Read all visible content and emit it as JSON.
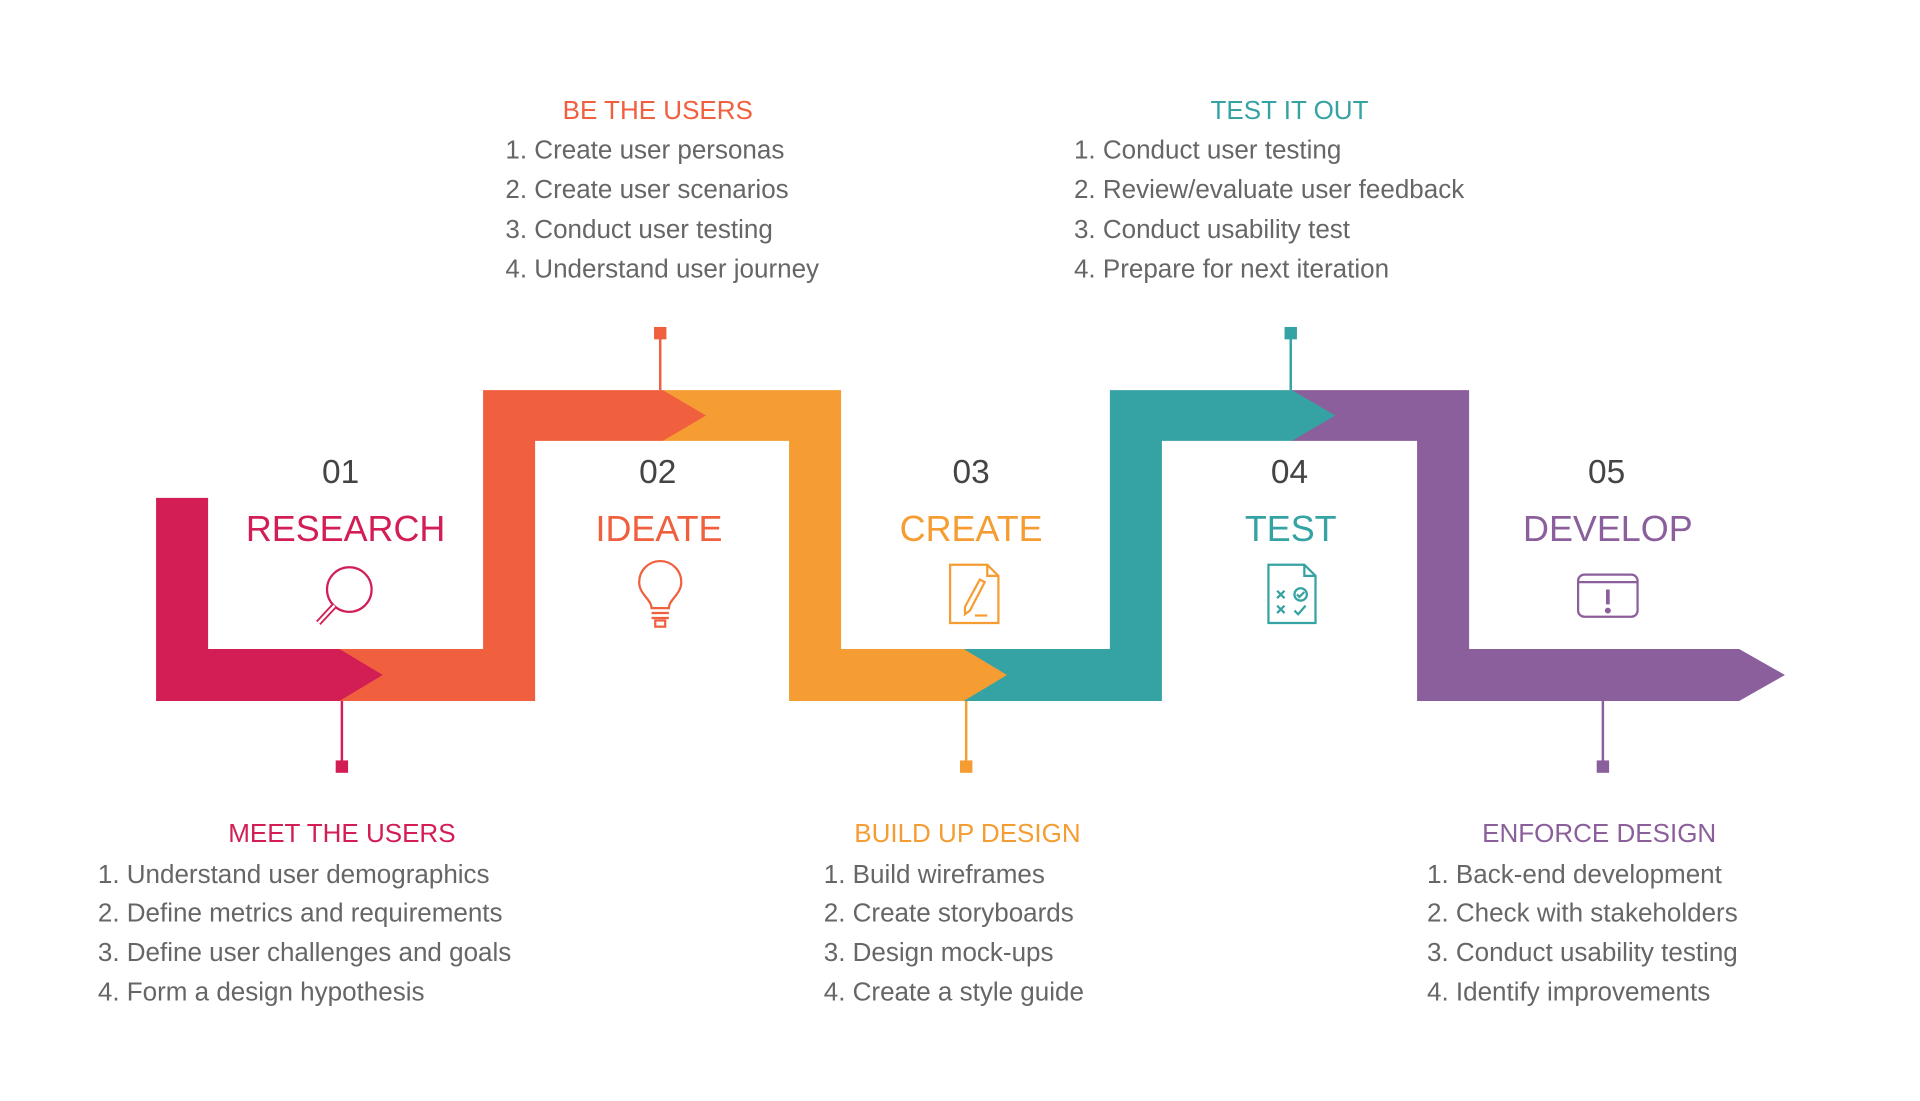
{
  "colors": {
    "research": "#D21E55",
    "ideate": "#F05F3E",
    "create": "#F59D32",
    "test": "#35A2A4",
    "develop": "#8B5F9B",
    "number": "#444444",
    "text": "#666666"
  },
  "stages": [
    {
      "number": "01",
      "label": "RESEARCH",
      "icon": "magnifier-icon"
    },
    {
      "number": "02",
      "label": "IDEATE",
      "icon": "lightbulb-icon"
    },
    {
      "number": "03",
      "label": "CREATE",
      "icon": "document-pen-icon"
    },
    {
      "number": "04",
      "label": "TEST",
      "icon": "checklist-document-icon"
    },
    {
      "number": "05",
      "label": "DEVELOP",
      "icon": "browser-alert-icon"
    }
  ],
  "callouts": {
    "research": {
      "title": "MEET THE USERS",
      "items": [
        "1. Understand user demographics",
        "2. Define metrics and requirements",
        "3. Define user challenges and goals",
        "4. Form a design hypothesis"
      ]
    },
    "ideate": {
      "title": "BE THE USERS",
      "items": [
        "1. Create user personas",
        "2. Create user scenarios",
        "3. Conduct user testing",
        "4. Understand user journey"
      ]
    },
    "create": {
      "title": "BUILD UP DESIGN",
      "items": [
        "1. Build wireframes",
        "2. Create storyboards",
        "3. Design mock-ups",
        "4. Create a style guide"
      ]
    },
    "test": {
      "title": "TEST IT OUT",
      "items": [
        "1. Conduct user testing",
        "2. Review/evaluate user feedback",
        "3. Conduct usability test",
        "4. Prepare for next iteration"
      ]
    },
    "develop": {
      "title": "ENFORCE DESIGN",
      "items": [
        "1. Back-end development",
        "2. Check with stakeholders",
        "3. Conduct usability testing",
        "4. Identify improvements"
      ]
    }
  }
}
